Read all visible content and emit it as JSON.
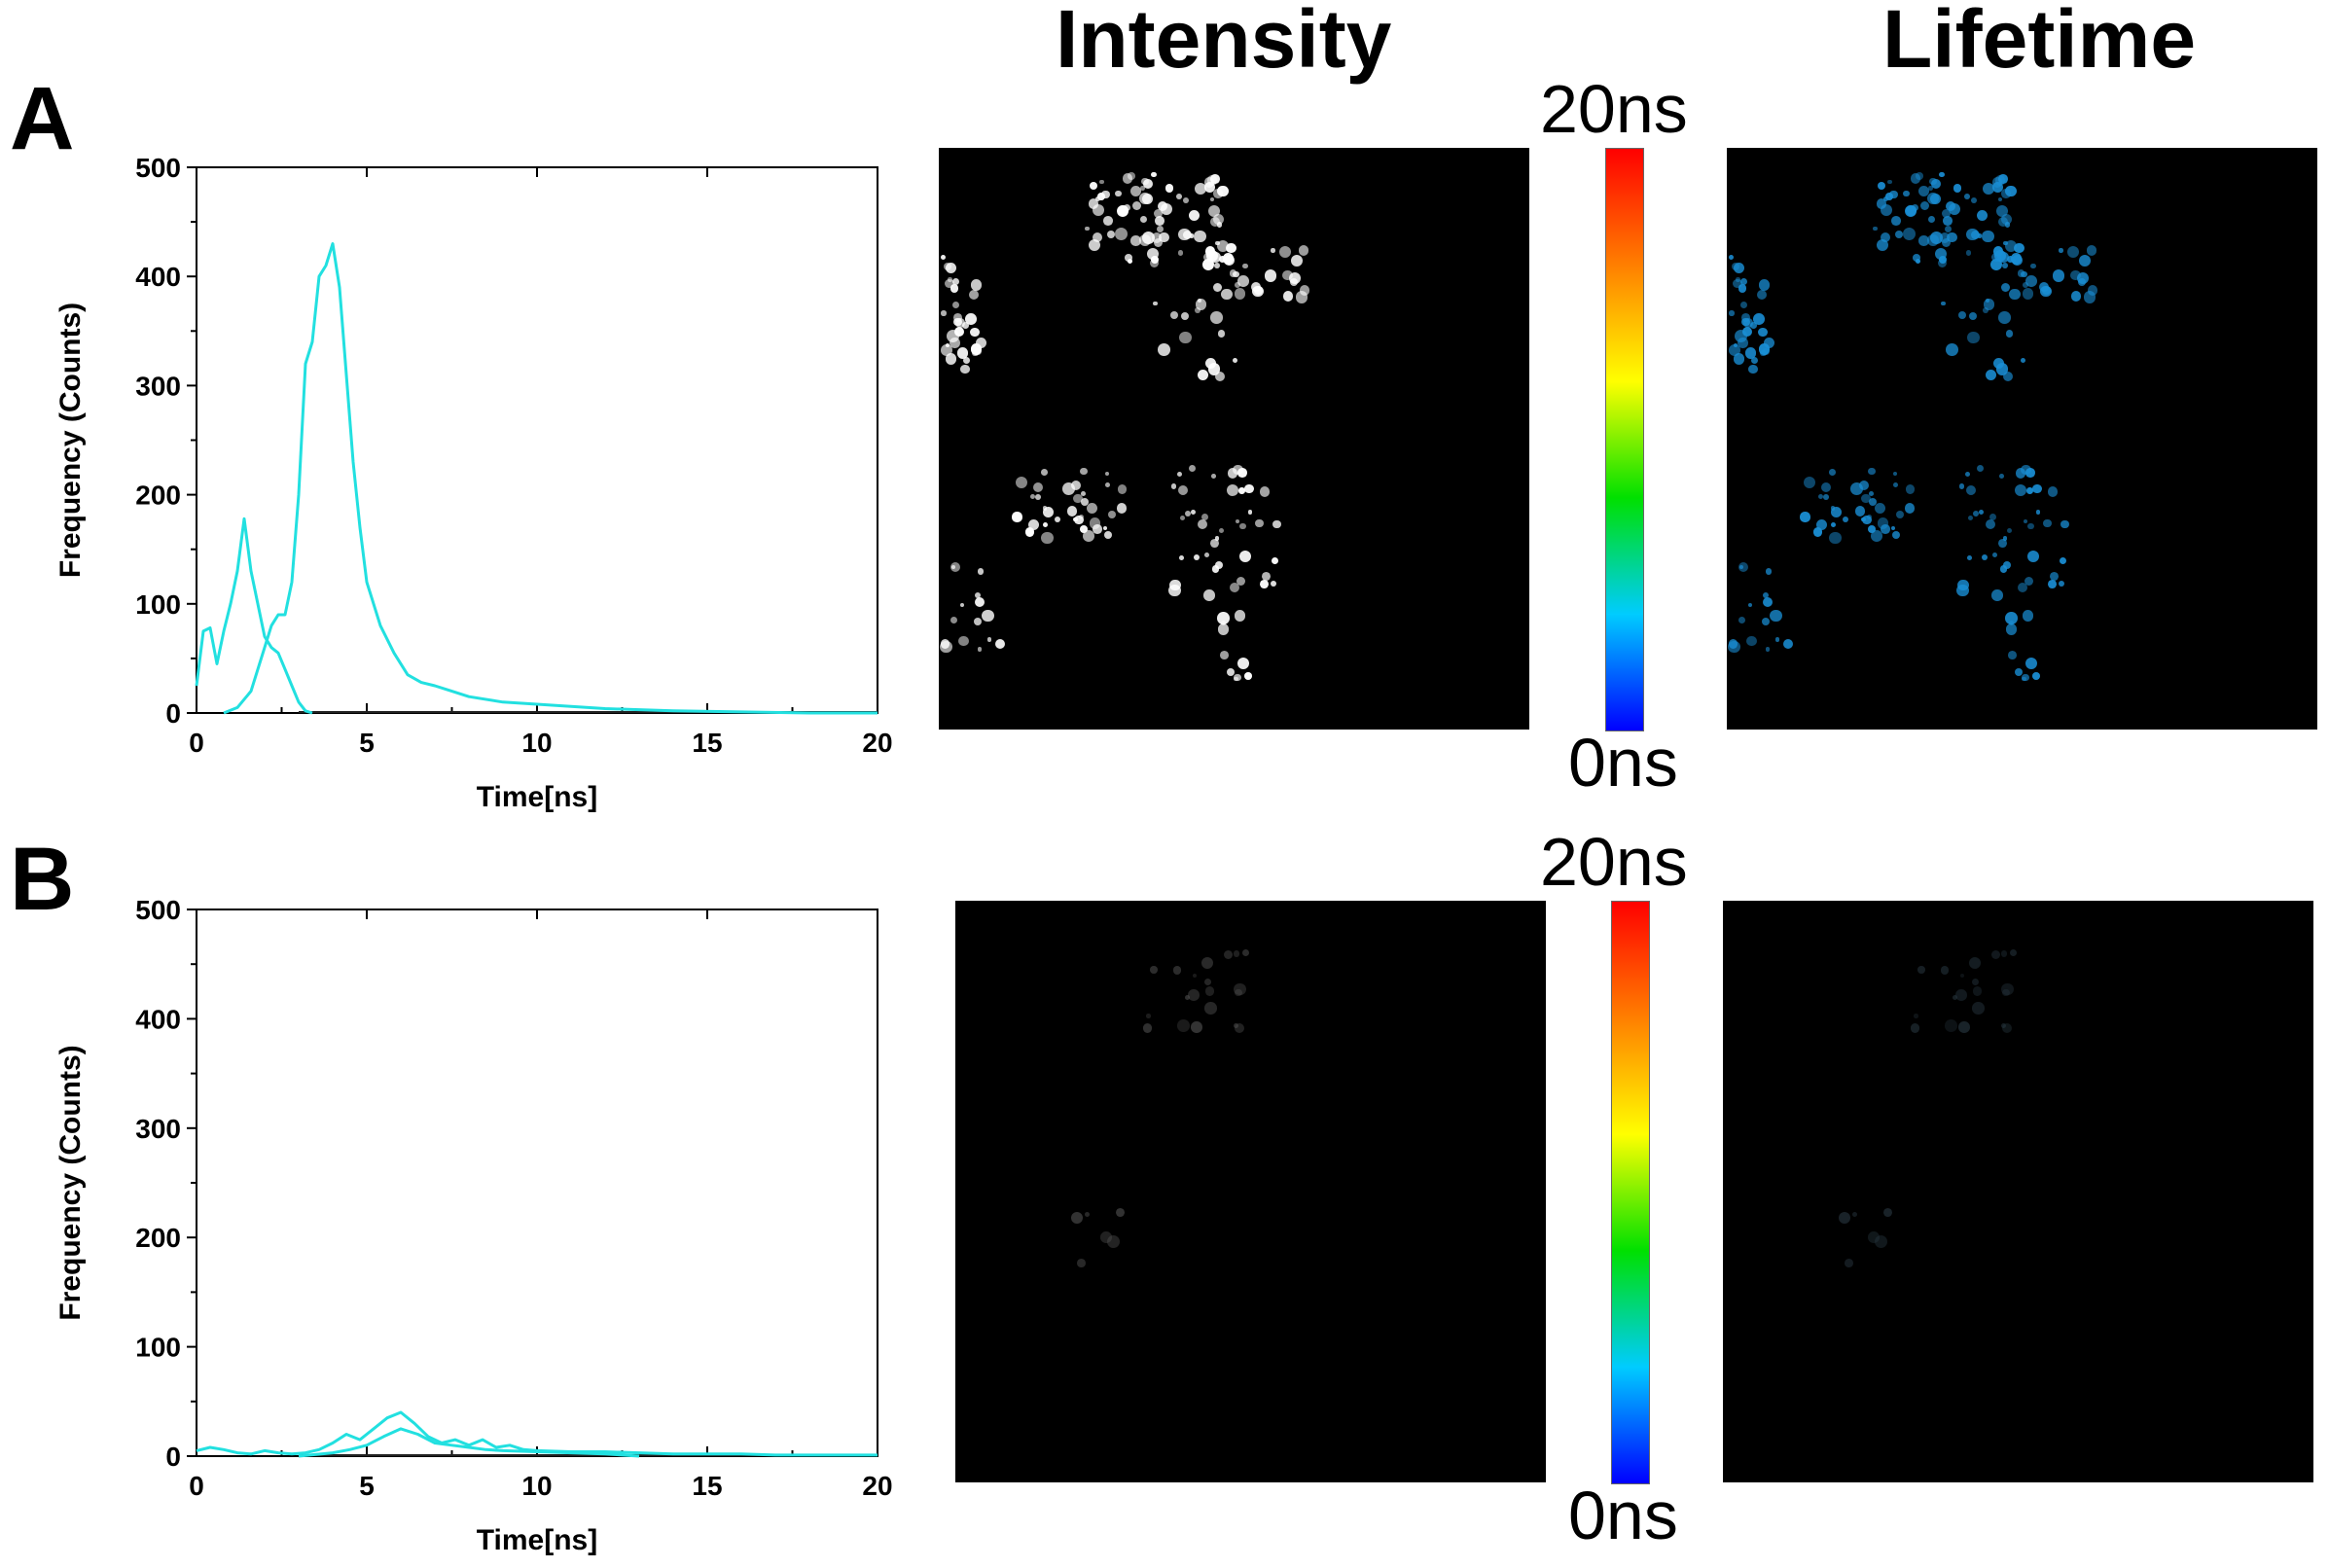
{
  "headers": {
    "intensity": "Intensity",
    "lifetime": "Lifetime"
  },
  "panels": [
    {
      "letter": "A",
      "scale_max": "20ns",
      "scale_min": "0ns"
    },
    {
      "letter": "B",
      "scale_max": "20ns",
      "scale_min": "0ns"
    }
  ],
  "colors": {
    "curve": "#22e0e0",
    "lifetime_dots": "#1a8fd6",
    "intensity_dots": "#ffffff"
  },
  "chart_data": [
    {
      "type": "line",
      "panel": "A",
      "xlabel": "Time[ns]",
      "ylabel": "Frequency (Counts)",
      "xlim": [
        0,
        20
      ],
      "ylim": [
        0,
        500
      ],
      "xticks": [
        0,
        5,
        10,
        15,
        20
      ],
      "yticks": [
        0,
        100,
        200,
        300,
        400,
        500
      ],
      "series": [
        {
          "x": [
            0,
            0.2,
            0.4,
            0.6,
            0.8,
            1.0,
            1.2,
            1.4,
            1.6,
            1.8,
            2.0,
            2.2,
            2.4,
            2.6,
            2.8,
            3.0,
            3.2,
            3.4
          ],
          "y": [
            25,
            75,
            78,
            45,
            75,
            100,
            130,
            178,
            130,
            100,
            70,
            60,
            55,
            40,
            25,
            10,
            2,
            0
          ]
        },
        {
          "x": [
            0.8,
            1.2,
            1.6,
            2.0,
            2.2,
            2.4,
            2.6,
            2.8,
            3.0,
            3.2,
            3.4,
            3.6,
            3.8,
            4.0,
            4.2,
            4.4,
            4.6,
            4.8,
            5.0,
            5.4,
            5.8,
            6.2,
            6.6,
            7.0,
            7.5,
            8,
            9,
            10,
            11,
            12,
            13,
            14,
            16,
            18,
            20
          ],
          "y": [
            0,
            5,
            20,
            60,
            80,
            90,
            90,
            120,
            200,
            320,
            340,
            400,
            410,
            430,
            390,
            310,
            230,
            170,
            120,
            80,
            55,
            35,
            28,
            25,
            20,
            15,
            10,
            8,
            6,
            4,
            3,
            2,
            1,
            0,
            0
          ]
        }
      ]
    },
    {
      "type": "line",
      "panel": "B",
      "xlabel": "Time[ns]",
      "ylabel": "Frequency (Counts)",
      "xlim": [
        0,
        20
      ],
      "ylim": [
        0,
        500
      ],
      "xticks": [
        0,
        5,
        10,
        15,
        20
      ],
      "yticks": [
        0,
        100,
        200,
        300,
        400,
        500
      ],
      "series": [
        {
          "x": [
            0,
            0.4,
            0.8,
            1.2,
            1.6,
            2.0,
            2.4,
            2.8,
            3.2,
            3.6,
            4.0,
            4.4,
            4.8,
            5.2,
            5.6,
            6.0,
            6.4,
            6.8,
            7.2,
            7.6,
            8.0,
            8.4,
            8.8,
            9.2,
            9.6,
            10,
            11,
            12,
            13,
            14,
            15,
            16,
            17,
            18,
            19,
            20
          ],
          "y": [
            5,
            8,
            6,
            3,
            2,
            5,
            3,
            2,
            3,
            6,
            12,
            20,
            15,
            25,
            35,
            40,
            30,
            18,
            12,
            15,
            10,
            15,
            8,
            10,
            6,
            5,
            4,
            4,
            3,
            2,
            2,
            2,
            1,
            1,
            1,
            1
          ]
        },
        {
          "x": [
            3,
            4,
            4.5,
            5,
            5.5,
            6,
            6.5,
            7,
            7.5,
            8,
            8.5,
            9,
            10,
            11,
            12,
            13
          ],
          "y": [
            0,
            3,
            6,
            10,
            18,
            25,
            20,
            12,
            10,
            8,
            6,
            5,
            4,
            3,
            2,
            0
          ]
        }
      ]
    }
  ]
}
